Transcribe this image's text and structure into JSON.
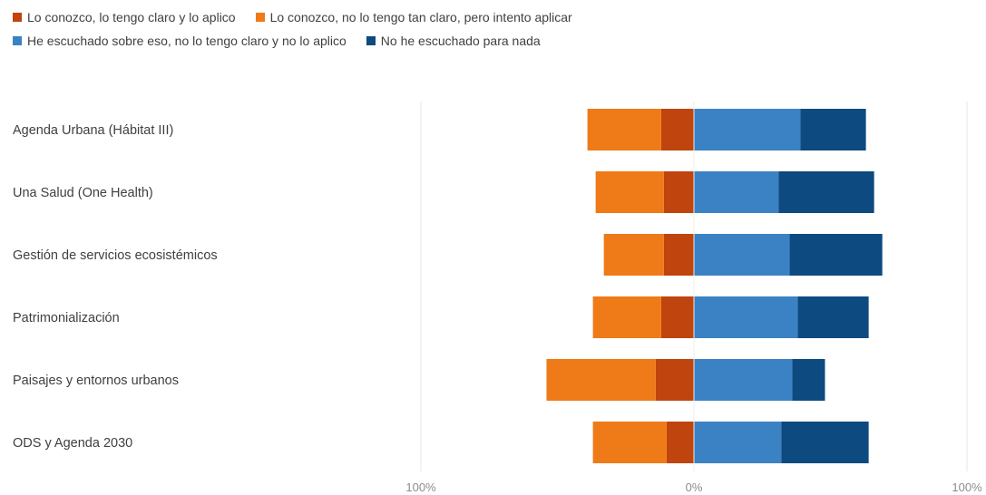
{
  "chart_data": {
    "type": "bar",
    "orientation": "horizontal",
    "stacking": "diverging",
    "categories": [
      "Agenda Urbana (Hábitat III)",
      "Una Salud (One Health)",
      "Gestión de servicios ecosistémicos",
      "Patrimonialización",
      "Paisajes y entornos  urbanos",
      "ODS y Agenda 2030"
    ],
    "series": [
      {
        "name": "Lo conozco, lo tengo claro y lo aplico",
        "color": "#c0440d",
        "side": "negative",
        "values": [
          12,
          11,
          11,
          12,
          14,
          10
        ]
      },
      {
        "name": "Lo conozco, no lo tengo tan claro, pero intento aplicar",
        "color": "#ef7a18",
        "side": "negative",
        "values": [
          27,
          25,
          22,
          25,
          40,
          27
        ]
      },
      {
        "name": "He escuchado sobre eso, no lo tengo claro y no lo aplico",
        "color": "#3b82c4",
        "side": "positive",
        "values": [
          39,
          31,
          35,
          38,
          36,
          32
        ]
      },
      {
        "name": "No he escuchado para nada",
        "color": "#0d4a80",
        "side": "positive",
        "values": [
          24,
          35,
          34,
          26,
          12,
          32
        ]
      }
    ],
    "xlim": [
      -100,
      100
    ],
    "xtick_labels": [
      "100%",
      "0%",
      "100%"
    ],
    "title": "",
    "xlabel": "",
    "ylabel": "",
    "grid": false,
    "legend_position": "top-left"
  }
}
